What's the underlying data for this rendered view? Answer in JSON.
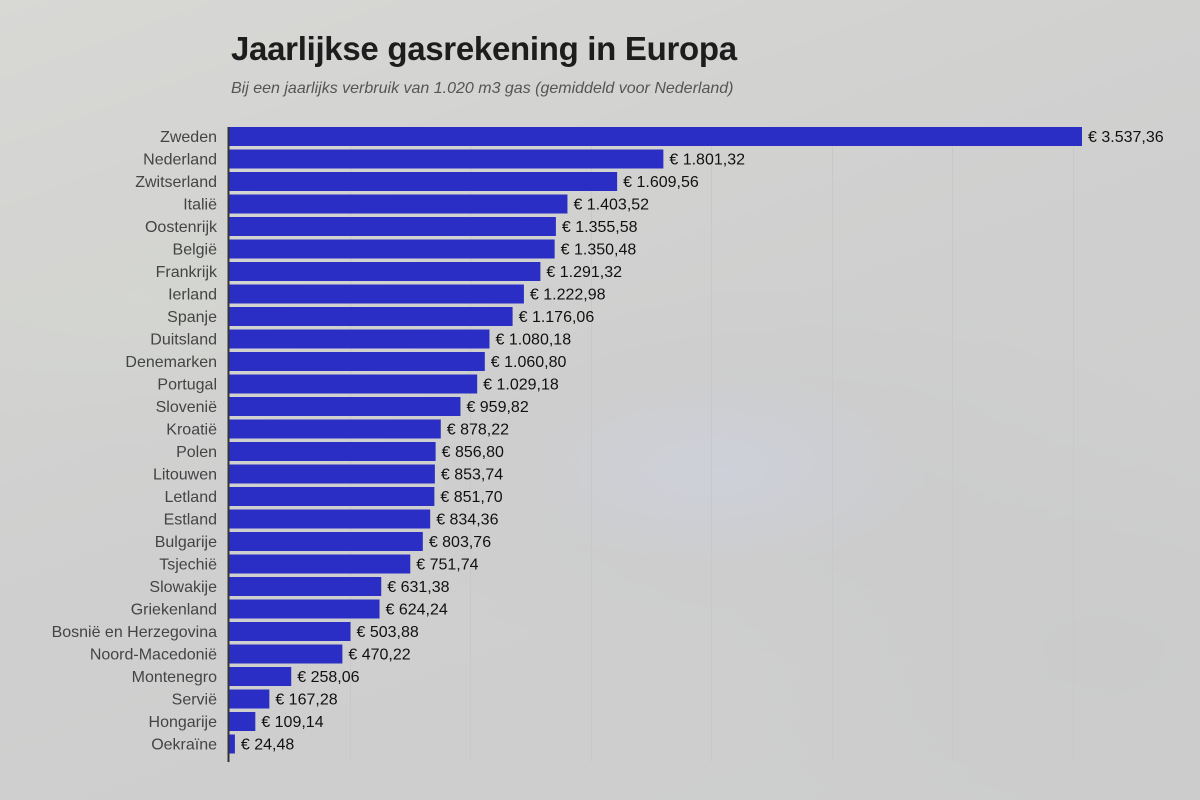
{
  "title": "Jaarlijkse gasrekening in Europa",
  "subtitle": "Bij een jaarlijks verbruik van 1.020 m3 gas (gemiddeld voor Nederland)",
  "colors": {
    "bar": "#2a2ec4",
    "grid": "#c8c8c8",
    "axis": "#333333"
  },
  "chart_data": {
    "type": "bar",
    "orientation": "horizontal",
    "categories": [
      "Zweden",
      "Nederland",
      "Zwitserland",
      "Italië",
      "Oostenrijk",
      "België",
      "Frankrijk",
      "Ierland",
      "Spanje",
      "Duitsland",
      "Denemarken",
      "Portugal",
      "Slovenië",
      "Kroatië",
      "Polen",
      "Litouwen",
      "Letland",
      "Estland",
      "Bulgarije",
      "Tsjechië",
      "Slowakije",
      "Griekenland",
      "Bosnië en Herzegovina",
      "Noord-Macedonië",
      "Montenegro",
      "Servië",
      "Hongarije",
      "Oekraïne"
    ],
    "values": [
      3537.36,
      1801.32,
      1609.56,
      1403.52,
      1355.58,
      1350.48,
      1291.32,
      1222.98,
      1176.06,
      1080.18,
      1060.8,
      1029.18,
      959.82,
      878.22,
      856.8,
      853.74,
      851.7,
      834.36,
      803.76,
      751.74,
      631.38,
      624.24,
      503.88,
      470.22,
      258.06,
      167.28,
      109.14,
      24.48
    ],
    "value_labels": [
      "€ 3.537,36",
      "€ 1.801,32",
      "€ 1.609,56",
      "€ 1.403,52",
      "€ 1.355,58",
      "€ 1.350,48",
      "€ 1.291,32",
      "€ 1.222,98",
      "€ 1.176,06",
      "€ 1.080,18",
      "€ 1.060,80",
      "€ 1.029,18",
      "€ 959,82",
      "€ 878,22",
      "€ 856,80",
      "€ 853,74",
      "€ 851,70",
      "€ 834,36",
      "€ 803,76",
      "€ 751,74",
      "€ 631,38",
      "€ 624,24",
      "€ 503,88",
      "€ 470,22",
      "€ 258,06",
      "€ 167,28",
      "€ 109,14",
      "€ 24,48"
    ],
    "xlim": [
      0,
      3537.36
    ],
    "grid_step": 500,
    "grid": true,
    "legend": "none"
  }
}
